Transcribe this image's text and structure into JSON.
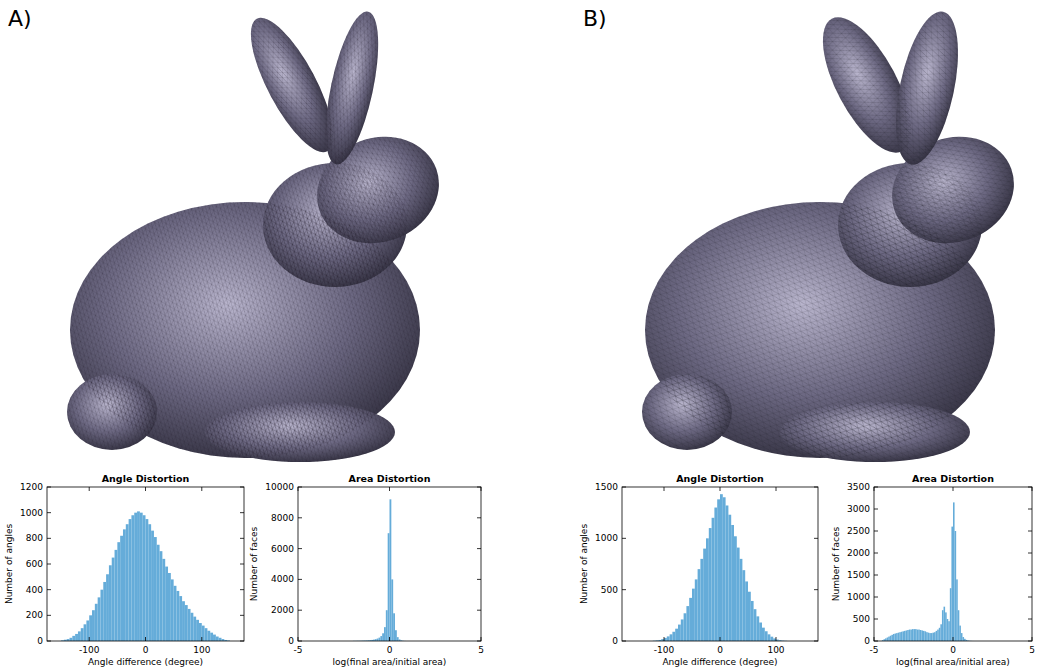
{
  "panels": [
    "A)",
    "B)"
  ],
  "chart_data": [
    {
      "type": "histogram",
      "title": "Angle Distortion",
      "x_label": "Angle difference (degree)",
      "y_label": "Number of angles",
      "color": "#65acd9",
      "bins": [
        -150,
        -145,
        -140,
        -135,
        -130,
        -125,
        -120,
        -115,
        -110,
        -105,
        -100,
        -95,
        -90,
        -85,
        -80,
        -75,
        -70,
        -65,
        -60,
        -55,
        -50,
        -45,
        -40,
        -35,
        -30,
        -25,
        -20,
        -15,
        -10,
        -5,
        0,
        5,
        10,
        15,
        20,
        25,
        30,
        35,
        40,
        45,
        50,
        55,
        60,
        65,
        70,
        75,
        80,
        85,
        90,
        95,
        100,
        105,
        110,
        115,
        120,
        125,
        130,
        135,
        140,
        145,
        150
      ],
      "values": [
        5,
        10,
        15,
        25,
        40,
        55,
        75,
        100,
        130,
        160,
        200,
        240,
        290,
        340,
        400,
        460,
        520,
        590,
        650,
        710,
        770,
        820,
        870,
        910,
        950,
        980,
        1000,
        1010,
        1000,
        980,
        950,
        910,
        860,
        810,
        750,
        700,
        640,
        580,
        530,
        480,
        430,
        390,
        350,
        310,
        280,
        250,
        220,
        190,
        165,
        140,
        120,
        100,
        80,
        65,
        50,
        35,
        25,
        15,
        8,
        4
      ],
      "xlim": [
        -175,
        175
      ],
      "xticks": [
        -100,
        0,
        100
      ],
      "ylim": [
        0,
        1200
      ],
      "yticks": [
        0,
        200,
        400,
        600,
        800,
        1000,
        1200
      ]
    },
    {
      "type": "histogram",
      "title": "Area Distortion",
      "x_label": "log(final area/initial area)",
      "y_label": "Number of faces",
      "color": "#65acd9",
      "bins": [
        -2.0,
        -1.9,
        -1.8,
        -1.7,
        -1.6,
        -1.5,
        -1.4,
        -1.3,
        -1.2,
        -1.1,
        -1.0,
        -0.9,
        -0.8,
        -0.7,
        -0.6,
        -0.5,
        -0.4,
        -0.3,
        -0.2,
        -0.1,
        0.0,
        0.1,
        0.2,
        0.3,
        0.4,
        0.5,
        0.6,
        0.7,
        0.8,
        0.9
      ],
      "values": [
        10,
        10,
        15,
        15,
        20,
        25,
        30,
        35,
        45,
        55,
        70,
        90,
        120,
        160,
        220,
        320,
        500,
        900,
        2000,
        7000,
        9200,
        4000,
        1800,
        700,
        250,
        100,
        40,
        15,
        5
      ],
      "xlim": [
        -5,
        5
      ],
      "xticks": [
        -5,
        0,
        5
      ],
      "ylim": [
        0,
        10000
      ],
      "yticks": [
        0,
        2000,
        4000,
        6000,
        8000,
        10000
      ]
    },
    {
      "type": "histogram",
      "title": "Angle Distortion",
      "x_label": "Angle difference (degree)",
      "y_label": "Number of angles",
      "color": "#65acd9",
      "bins": [
        -120,
        -115,
        -110,
        -105,
        -100,
        -95,
        -90,
        -85,
        -80,
        -75,
        -70,
        -65,
        -60,
        -55,
        -50,
        -45,
        -40,
        -35,
        -30,
        -25,
        -20,
        -15,
        -10,
        -5,
        0,
        5,
        10,
        15,
        20,
        25,
        30,
        35,
        40,
        45,
        50,
        55,
        60,
        65,
        70,
        75,
        80,
        85,
        90,
        95,
        100,
        105,
        110,
        115,
        120
      ],
      "values": [
        3,
        6,
        10,
        18,
        30,
        45,
        65,
        90,
        120,
        160,
        210,
        270,
        340,
        420,
        510,
        600,
        700,
        800,
        900,
        1000,
        1100,
        1200,
        1300,
        1380,
        1430,
        1400,
        1320,
        1230,
        1130,
        1020,
        910,
        800,
        690,
        580,
        480,
        390,
        310,
        240,
        180,
        130,
        95,
        65,
        42,
        25,
        14,
        8,
        4,
        2
      ],
      "xlim": [
        -175,
        175
      ],
      "xticks": [
        -100,
        0,
        100
      ],
      "ylim": [
        0,
        1500
      ],
      "yticks": [
        0,
        500,
        1000,
        1500
      ]
    },
    {
      "type": "histogram",
      "title": "Area Distortion",
      "x_label": "log(final area/initial area)",
      "y_label": "Number of faces",
      "color": "#65acd9",
      "bins": [
        -4.5,
        -4.4,
        -4.3,
        -4.2,
        -4.1,
        -4.0,
        -3.9,
        -3.8,
        -3.7,
        -3.6,
        -3.5,
        -3.4,
        -3.3,
        -3.2,
        -3.1,
        -3.0,
        -2.9,
        -2.8,
        -2.7,
        -2.6,
        -2.5,
        -2.4,
        -2.3,
        -2.2,
        -2.1,
        -2.0,
        -1.9,
        -1.8,
        -1.7,
        -1.6,
        -1.5,
        -1.4,
        -1.3,
        -1.2,
        -1.1,
        -1.0,
        -0.9,
        -0.8,
        -0.7,
        -0.6,
        -0.5,
        -0.4,
        -0.3,
        -0.2,
        -0.1,
        0.0,
        0.1,
        0.2,
        0.3,
        0.4,
        0.5,
        0.6,
        0.7,
        0.8,
        0.9,
        1.0,
        1.1,
        1.2,
        1.3
      ],
      "values": [
        20,
        40,
        60,
        80,
        100,
        120,
        140,
        160,
        170,
        180,
        190,
        200,
        210,
        220,
        230,
        240,
        250,
        260,
        260,
        270,
        270,
        270,
        260,
        260,
        250,
        240,
        230,
        220,
        200,
        190,
        180,
        180,
        190,
        200,
        230,
        260,
        300,
        380,
        700,
        780,
        650,
        500,
        450,
        1200,
        2600,
        3150,
        2500,
        1400,
        700,
        350,
        180,
        90,
        50,
        25,
        12,
        6,
        3,
        1
      ],
      "xlim": [
        -5,
        5
      ],
      "xticks": [
        -5,
        0,
        5
      ],
      "ylim": [
        0,
        3500
      ],
      "yticks": [
        0,
        500,
        1000,
        1500,
        2000,
        2500,
        3000,
        3500
      ]
    }
  ]
}
